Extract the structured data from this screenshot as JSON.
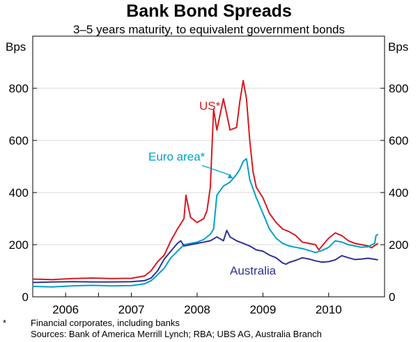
{
  "chart_data": {
    "type": "line",
    "title": "Bank Bond Spreads",
    "subtitle": "3–5 years maturity, to equivalent government bonds",
    "ylabel_left": "Bps",
    "ylabel_right": "Bps",
    "xlim": [
      2005.5,
      2010.85
    ],
    "ylim": [
      0,
      1000
    ],
    "y_ticks": [
      0,
      200,
      400,
      600,
      800
    ],
    "x_tick_labels": [
      {
        "label": "2006",
        "x": 2006.0
      },
      {
        "label": "2007",
        "x": 2007.0
      },
      {
        "label": "2008",
        "x": 2008.0
      },
      {
        "label": "2009",
        "x": 2009.0
      },
      {
        "label": "2010",
        "x": 2010.0
      }
    ],
    "series": [
      {
        "name": "US*",
        "color": "#d71920",
        "points": [
          [
            2005.5,
            68
          ],
          [
            2005.8,
            66
          ],
          [
            2006.1,
            70
          ],
          [
            2006.4,
            72
          ],
          [
            2006.7,
            70
          ],
          [
            2007.0,
            71
          ],
          [
            2007.2,
            80
          ],
          [
            2007.3,
            100
          ],
          [
            2007.4,
            135
          ],
          [
            2007.5,
            160
          ],
          [
            2007.6,
            215
          ],
          [
            2007.7,
            260
          ],
          [
            2007.8,
            300
          ],
          [
            2007.83,
            390
          ],
          [
            2007.87,
            340
          ],
          [
            2007.9,
            305
          ],
          [
            2008.0,
            285
          ],
          [
            2008.1,
            300
          ],
          [
            2008.15,
            330
          ],
          [
            2008.2,
            420
          ],
          [
            2008.25,
            720
          ],
          [
            2008.3,
            640
          ],
          [
            2008.35,
            700
          ],
          [
            2008.4,
            760
          ],
          [
            2008.45,
            700
          ],
          [
            2008.5,
            640
          ],
          [
            2008.6,
            650
          ],
          [
            2008.65,
            750
          ],
          [
            2008.7,
            830
          ],
          [
            2008.75,
            760
          ],
          [
            2008.8,
            600
          ],
          [
            2008.85,
            480
          ],
          [
            2008.9,
            420
          ],
          [
            2009.0,
            380
          ],
          [
            2009.1,
            320
          ],
          [
            2009.2,
            285
          ],
          [
            2009.3,
            260
          ],
          [
            2009.4,
            250
          ],
          [
            2009.5,
            235
          ],
          [
            2009.6,
            210
          ],
          [
            2009.7,
            205
          ],
          [
            2009.8,
            200
          ],
          [
            2009.85,
            180
          ],
          [
            2009.9,
            195
          ],
          [
            2010.0,
            225
          ],
          [
            2010.1,
            245
          ],
          [
            2010.2,
            235
          ],
          [
            2010.3,
            215
          ],
          [
            2010.4,
            205
          ],
          [
            2010.5,
            200
          ],
          [
            2010.6,
            195
          ],
          [
            2010.65,
            188
          ],
          [
            2010.72,
            200
          ],
          [
            2010.75,
            205
          ]
        ]
      },
      {
        "name": "Euro area*",
        "color": "#00a0c6",
        "points": [
          [
            2005.5,
            40
          ],
          [
            2005.8,
            38
          ],
          [
            2006.1,
            42
          ],
          [
            2006.4,
            44
          ],
          [
            2006.7,
            42
          ],
          [
            2007.0,
            43
          ],
          [
            2007.2,
            50
          ],
          [
            2007.3,
            62
          ],
          [
            2007.4,
            85
          ],
          [
            2007.5,
            110
          ],
          [
            2007.6,
            150
          ],
          [
            2007.7,
            175
          ],
          [
            2007.8,
            200
          ],
          [
            2007.9,
            205
          ],
          [
            2008.0,
            210
          ],
          [
            2008.1,
            220
          ],
          [
            2008.2,
            240
          ],
          [
            2008.25,
            260
          ],
          [
            2008.3,
            390
          ],
          [
            2008.4,
            425
          ],
          [
            2008.5,
            440
          ],
          [
            2008.6,
            470
          ],
          [
            2008.65,
            490
          ],
          [
            2008.7,
            520
          ],
          [
            2008.75,
            530
          ],
          [
            2008.8,
            450
          ],
          [
            2008.9,
            380
          ],
          [
            2009.0,
            320
          ],
          [
            2009.1,
            260
          ],
          [
            2009.2,
            225
          ],
          [
            2009.3,
            205
          ],
          [
            2009.4,
            195
          ],
          [
            2009.5,
            190
          ],
          [
            2009.6,
            185
          ],
          [
            2009.7,
            178
          ],
          [
            2009.8,
            170
          ],
          [
            2009.9,
            178
          ],
          [
            2010.0,
            190
          ],
          [
            2010.1,
            215
          ],
          [
            2010.2,
            210
          ],
          [
            2010.3,
            200
          ],
          [
            2010.4,
            195
          ],
          [
            2010.5,
            190
          ],
          [
            2010.6,
            192
          ],
          [
            2010.7,
            205
          ],
          [
            2010.72,
            235
          ],
          [
            2010.75,
            240
          ]
        ]
      },
      {
        "name": "Australia",
        "color": "#2e3192",
        "points": [
          [
            2005.5,
            55
          ],
          [
            2005.8,
            57
          ],
          [
            2006.1,
            58
          ],
          [
            2006.4,
            57
          ],
          [
            2006.7,
            57
          ],
          [
            2007.0,
            58
          ],
          [
            2007.2,
            62
          ],
          [
            2007.3,
            72
          ],
          [
            2007.4,
            100
          ],
          [
            2007.5,
            145
          ],
          [
            2007.6,
            175
          ],
          [
            2007.7,
            205
          ],
          [
            2007.75,
            215
          ],
          [
            2007.8,
            195
          ],
          [
            2007.9,
            200
          ],
          [
            2008.0,
            205
          ],
          [
            2008.1,
            210
          ],
          [
            2008.2,
            215
          ],
          [
            2008.3,
            230
          ],
          [
            2008.4,
            215
          ],
          [
            2008.45,
            255
          ],
          [
            2008.5,
            230
          ],
          [
            2008.6,
            215
          ],
          [
            2008.7,
            205
          ],
          [
            2008.8,
            195
          ],
          [
            2008.9,
            180
          ],
          [
            2009.0,
            175
          ],
          [
            2009.1,
            160
          ],
          [
            2009.2,
            150
          ],
          [
            2009.3,
            130
          ],
          [
            2009.35,
            125
          ],
          [
            2009.4,
            132
          ],
          [
            2009.5,
            140
          ],
          [
            2009.6,
            150
          ],
          [
            2009.7,
            145
          ],
          [
            2009.8,
            138
          ],
          [
            2009.9,
            133
          ],
          [
            2010.0,
            135
          ],
          [
            2010.1,
            142
          ],
          [
            2010.2,
            158
          ],
          [
            2010.3,
            150
          ],
          [
            2010.4,
            143
          ],
          [
            2010.5,
            145
          ],
          [
            2010.6,
            148
          ],
          [
            2010.7,
            144
          ],
          [
            2010.75,
            142
          ]
        ]
      }
    ],
    "annotations": [
      {
        "text": "US*",
        "series": "US*",
        "color": "#d71920"
      },
      {
        "text": "Euro area*",
        "series": "Euro area*",
        "color": "#00a0c6",
        "arrow_to": [
          2008.55,
          455
        ]
      },
      {
        "text": "Australia",
        "series": "Australia",
        "color": "#2e3192"
      }
    ]
  },
  "footnotes": {
    "star": "*",
    "star_text": "Financial corporates, including banks",
    "sources": "Sources: Bank of America Merrill Lynch;  RBA; UBS AG, Australia Branch"
  }
}
